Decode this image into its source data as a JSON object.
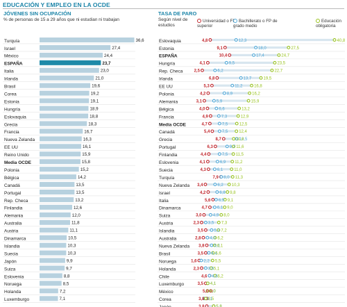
{
  "page": {
    "title": "EDUCACIÓN Y EMPLEO EN LA OCDE"
  },
  "colors": {
    "title": "#1b84a8",
    "bar": "#b7d1df",
    "bar_highlight": "#1f8aa8",
    "universidad": "#c1272d",
    "bachillerato": "#4fa8d8",
    "obligatoria": "#98c21f",
    "range_band": "#d8e6ef"
  },
  "chart_data": [
    {
      "type": "bar",
      "title": "JÓVENES SIN OCUPACIÓN",
      "subtitle": "% de personas de 15 a 29 años que ni estudian ni trabajan",
      "highlight": "ESPAÑA",
      "categories": [
        "Turquía",
        "Israel",
        "México",
        "ESPAÑA",
        "Italia",
        "Irlanda",
        "Brasil",
        "Corea",
        "Estonia",
        "Hungría",
        "Eslovaquia",
        "Grecia",
        "Francia",
        "Nueva Zelanda",
        "EE UU",
        "Reino Unido",
        "Media OCDE",
        "Polonia",
        "Bélgica",
        "Canadá",
        "Portugal",
        "Rep. Checa",
        "Finlandia",
        "Alemania",
        "Australia",
        "Austria",
        "Dinamarca",
        "Islandia",
        "Suecia",
        "Japón",
        "Suiza",
        "Eslovenia",
        "Noruega",
        "Holanda",
        "Luxemburgo"
      ],
      "values": [
        36.6,
        27.4,
        24.4,
        23.7,
        23.0,
        21.0,
        19.6,
        19.2,
        19.1,
        18.9,
        18.8,
        18.3,
        16.7,
        16.3,
        16.1,
        15.9,
        15.8,
        15.2,
        14.2,
        13.5,
        13.5,
        13.2,
        12.6,
        12.0,
        11.8,
        11.1,
        10.5,
        10.3,
        10.3,
        9.9,
        9.7,
        8.8,
        8.5,
        7.2,
        7.1
      ],
      "labels": [
        "36,6",
        "27,4",
        "24,4",
        "23,7",
        "23,0",
        "21,0",
        "19,6",
        "19,2",
        "19,1",
        "18,9",
        "18,8",
        "18,3",
        "16,7",
        "16,3",
        "16,1",
        "15,9",
        "15,8",
        "15,2",
        "14,2",
        "13,5",
        "13,5",
        "13,2",
        "12,6",
        "12,0",
        "11,8",
        "11,1",
        "10,5",
        "10,3",
        "10,3",
        "9,9",
        "9,7",
        "8,8",
        "8,5",
        "7,2",
        "7,1"
      ],
      "xlim": [
        0,
        37
      ]
    },
    {
      "type": "scatter",
      "title": "TASA DE PARO",
      "subtitle": "Según nivel de estudios",
      "series": [
        {
          "name": "Universidad o FP superior",
          "key": "u"
        },
        {
          "name": "Bachillerato o FP de grado medio",
          "key": "b"
        },
        {
          "name": "Educación obligatoria",
          "key": "e"
        }
      ],
      "rows": [
        {
          "country": "Eslovaquia",
          "u": 4.8,
          "b": 12.3,
          "e": 40.8,
          "ul": "4,8",
          "bl": "12,3",
          "el": "40,8"
        },
        {
          "country": "Estonia",
          "u": 9.1,
          "b": 18.0,
          "e": 27.5,
          "ul": "9,1",
          "bl": "18,0",
          "el": "27,5"
        },
        {
          "country": "ESPAÑA",
          "u": 10.4,
          "b": 17.4,
          "e": 24.7,
          "ul": "10,4",
          "bl": "17,4",
          "el": "24,7"
        },
        {
          "country": "Hungría",
          "u": 4.1,
          "b": 9.5,
          "e": 23.5,
          "ul": "4,1",
          "bl": "9,5",
          "el": "23,5"
        },
        {
          "country": "Rep. Checa",
          "u": 2.5,
          "b": 6.2,
          "e": 22.7,
          "ul": "2,5",
          "bl": "6,2",
          "el": "22,7"
        },
        {
          "country": "Irlanda",
          "u": 6.8,
          "b": 13.7,
          "e": 19.5,
          "ul": "6,8",
          "bl": "13,7",
          "el": "19,5"
        },
        {
          "country": "EE UU",
          "u": 5.3,
          "b": 11.2,
          "e": 16.8,
          "ul": "5,3",
          "bl": "11,2",
          "el": "16,8"
        },
        {
          "country": "Polonia",
          "u": 4.2,
          "b": 8.9,
          "e": 16.2,
          "ul": "4,2",
          "bl": "8,9",
          "el": "16,2"
        },
        {
          "country": "Alemania",
          "u": 3.1,
          "b": 5.9,
          "e": 15.9,
          "ul": "3,1",
          "bl": "5,9",
          "el": "15,9"
        },
        {
          "country": "Bélgica",
          "u": 4.0,
          "b": 6.6,
          "e": 13.2,
          "ul": "4,0",
          "bl": "6,6",
          "el": "13,2"
        },
        {
          "country": "Francia",
          "u": 4.9,
          "b": 7.3,
          "e": 12.9,
          "ul": "4,9",
          "bl": "7,3",
          "el": "12,9"
        },
        {
          "country": "Media OCDE",
          "u": 4.7,
          "b": 7.5,
          "e": 12.5,
          "ul": "4,7",
          "bl": "7,5",
          "el": "12,5"
        },
        {
          "country": "Canadá",
          "u": 5.4,
          "b": 7.5,
          "e": 12.4,
          "ul": "5,4",
          "bl": "7,5",
          "el": "12,4"
        },
        {
          "country": "Grecia",
          "u": 8.7,
          "b": 12.5,
          "e": 11.6,
          "ul": "8,7",
          "bl": "12,5",
          "el": "11,6"
        },
        {
          "country": "Portugal",
          "u": 6.3,
          "b": 9.7,
          "e": 11.6,
          "ul": "6,3",
          "bl": "9,7",
          "el": "11,6"
        },
        {
          "country": "Finlandia",
          "u": 4.4,
          "b": 7.5,
          "e": 11.5,
          "ul": "4,4",
          "bl": "7,5",
          "el": "11,5"
        },
        {
          "country": "Eslovenia",
          "u": 4.1,
          "b": 6.9,
          "e": 11.2,
          "ul": "4,1",
          "bl": "6,9",
          "el": "11,2"
        },
        {
          "country": "Suecia",
          "u": 4.3,
          "b": 6.1,
          "e": 11.0,
          "ul": "4,3",
          "bl": "6,1",
          "el": "11,0"
        },
        {
          "country": "Turquía",
          "u": 7.9,
          "b": 8.0,
          "e": 11.3,
          "ul": "7,9",
          "bl": "8,0",
          "el": "11,3"
        },
        {
          "country": "Nueva Zelanda",
          "u": 3.4,
          "b": 6.2,
          "e": 10.3,
          "ul": "3,4",
          "bl": "6,2",
          "el": "10,3"
        },
        {
          "country": "Israel",
          "u": 4.2,
          "b": 6.8,
          "e": 9.8,
          "ul": "4,2",
          "bl": "6,8",
          "el": "9,8"
        },
        {
          "country": "Italia",
          "u": 5.6,
          "b": 6.5,
          "e": 9.1,
          "ul": "5,6",
          "bl": "6,5",
          "el": "9,1"
        },
        {
          "country": "Dinamarca",
          "u": 4.7,
          "b": 6.1,
          "e": 9.0,
          "ul": "4,7",
          "bl": "6,1",
          "el": "9,0"
        },
        {
          "country": "Suiza",
          "u": 3.0,
          "b": 4.9,
          "e": 8.0,
          "ul": "3,0",
          "bl": "4,9",
          "el": "8,0"
        },
        {
          "country": "Austria",
          "u": 2.3,
          "b": 3.5,
          "e": 7.3,
          "ul": "2,3",
          "bl": "3,5",
          "el": "7,3"
        },
        {
          "country": "Islandia",
          "u": 3.5,
          "b": 5.2,
          "e": 7.2,
          "ul": "3,5",
          "bl": "5,2",
          "el": "7,2"
        },
        {
          "country": "Australia",
          "u": 2.8,
          "b": 4.0,
          "e": 6.2,
          "ul": "2,8",
          "bl": "4,0",
          "el": "6,2"
        },
        {
          "country": "Nueva Zelanda",
          "u": 3.8,
          "b": 5.2,
          "e": 6.1,
          "ul": "3,8",
          "bl": "5,2",
          "el": "6,1"
        },
        {
          "country": "Brasil",
          "u": 3.5,
          "b": 4.4,
          "e": 5.6,
          "ul": "3,5",
          "bl": "4,4",
          "el": "5,6"
        },
        {
          "country": "Noruega",
          "u": 1.6,
          "b": 2.2,
          "e": 5.5,
          "ul": "1,6",
          "bl": "2,2",
          "el": "5,5"
        },
        {
          "country": "Holanda",
          "u": 2.3,
          "b": 3.5,
          "e": 5.1,
          "ul": "2,3",
          "bl": "3,5",
          "el": "5,1"
        },
        {
          "country": "Chile",
          "u": 4.6,
          "b": 4.6,
          "e": 6.2,
          "ul": "4,6",
          "bl": "4,6",
          "el": "6,2"
        },
        {
          "country": "Luxemburgo",
          "u": 3.5,
          "b": 4.1,
          "e": 4.1,
          "ul": "3,5",
          "bl": "4,1",
          "el": "4,1"
        },
        {
          "country": "México",
          "u": 5.0,
          "b": 4.0,
          "e": 4.0,
          "ul": "5,0",
          "bl": "4,0",
          "el": "4,0"
        },
        {
          "country": "Corea",
          "u": 3.8,
          "b": 3.1,
          "e": 3.5,
          "ul": "3,8",
          "bl": "3,1",
          "el": "3,5"
        },
        {
          "country": "Japón",
          "u": 3.8,
          "b": 5.8,
          "e": 5.8,
          "ul": "3,8",
          "bl": "5,8",
          "el": "5,8"
        }
      ],
      "highlight": [
        "ESPAÑA",
        "Media OCDE"
      ],
      "xlim": [
        0,
        42
      ]
    }
  ]
}
